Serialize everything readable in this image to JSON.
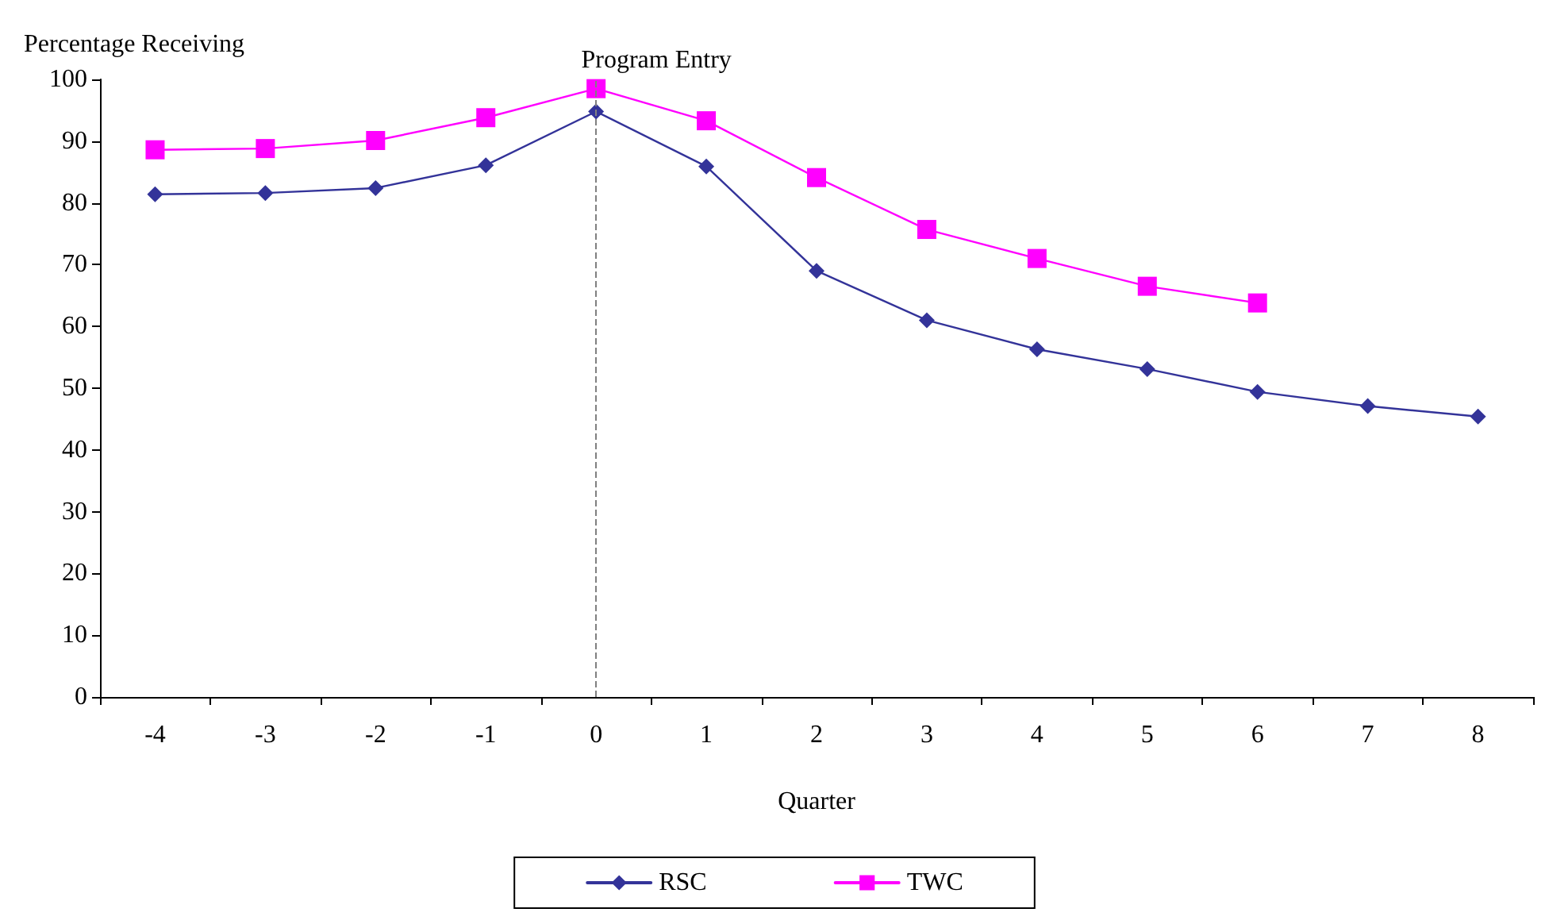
{
  "chart_data": {
    "type": "line",
    "ylabel": "Percentage Receiving",
    "xlabel": "Quarter",
    "categories": [
      "-4",
      "-3",
      "-2",
      "-1",
      "0",
      "1",
      "2",
      "3",
      "4",
      "5",
      "6",
      "7",
      "8"
    ],
    "series": [
      {
        "name": "RSC",
        "color": "#333399",
        "marker": "diamond",
        "values": [
          81.4,
          81.6,
          82.4,
          86.1,
          94.8,
          85.9,
          69.0,
          61.0,
          56.3,
          53.1,
          49.4,
          47.1,
          45.4
        ]
      },
      {
        "name": "TWC",
        "color": "#ff00ff",
        "marker": "square",
        "values": [
          88.6,
          88.8,
          90.1,
          93.8,
          98.5,
          93.3,
          84.1,
          75.7,
          71.0,
          66.5,
          63.8,
          null,
          null
        ]
      }
    ],
    "ylim": [
      0,
      100
    ],
    "yticks": [
      0,
      10,
      20,
      30,
      40,
      50,
      60,
      70,
      80,
      90,
      100
    ],
    "ref_lines": [
      {
        "axis": "x",
        "value": "0",
        "label": "Program Entry",
        "color": "#808080",
        "line_style": "dashed"
      }
    ],
    "grid": false,
    "legend": "bottom",
    "line_style": "solid"
  }
}
